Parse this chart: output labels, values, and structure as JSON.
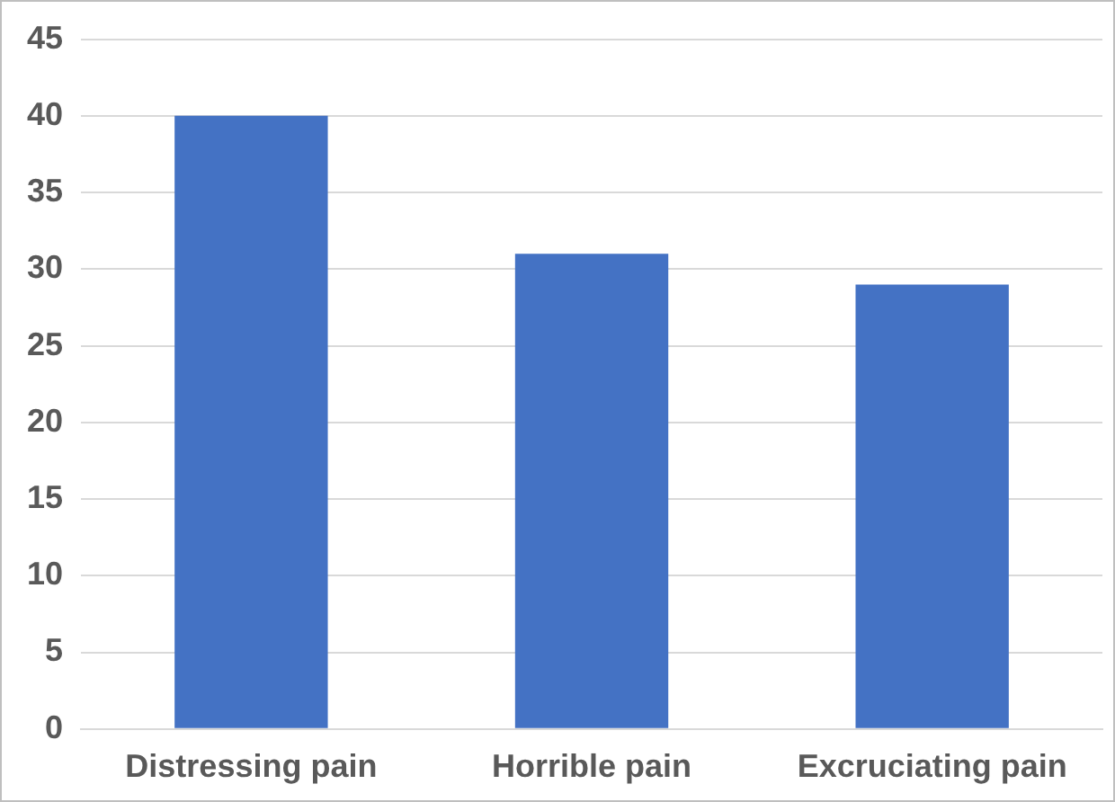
{
  "chart_data": {
    "type": "bar",
    "categories": [
      "Distressing pain",
      "Horrible pain",
      "Excruciating pain"
    ],
    "values": [
      40,
      31,
      29
    ],
    "color": "#4472c4",
    "ylim": [
      0,
      45
    ],
    "yticks": [
      0,
      5,
      10,
      15,
      20,
      25,
      30,
      35,
      40,
      45
    ],
    "grid": "y",
    "legend": false
  }
}
